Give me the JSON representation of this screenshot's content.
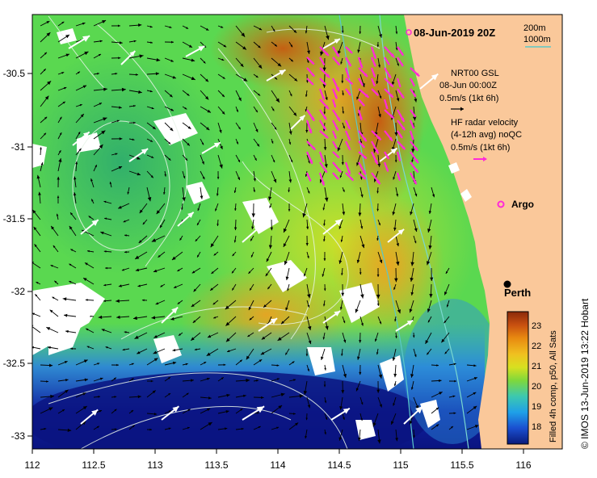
{
  "title": "08-Jun-2019 20Z",
  "credit": "© IMOS 13-Jun-2019 13:22 Hobart",
  "colorbar": {
    "label": "Filled 4h comp, p50, All Sats",
    "ticks": [
      "23",
      "22",
      "21",
      "20",
      "19",
      "18"
    ],
    "colors": [
      "#0a1a7a",
      "#1a4fd0",
      "#1fa0e8",
      "#3cc8b0",
      "#7ed83c",
      "#d8e020",
      "#f0c020",
      "#e88a10",
      "#c85010",
      "#8a2a0a"
    ]
  },
  "x_axis": {
    "ticks": [
      "112",
      "112.5",
      "113",
      "113.5",
      "114",
      "114.5",
      "115",
      "115.5",
      "116"
    ]
  },
  "y_axis": {
    "ticks": [
      "-30.5",
      "-31",
      "-31.5",
      "-32",
      "-32.5",
      "-33"
    ]
  },
  "legend": {
    "isobath_200": "200m",
    "isobath_1000": "1000m",
    "gsl_title": "NRT00 GSL",
    "gsl_date": "08-Jun 00:00Z",
    "gsl_scale": "0.5m/s (1kt 6h)",
    "hf_line1": "HF radar velocity",
    "hf_line2": "(4-12h avg) noQC",
    "hf_scale": "0.5m/s (1kt 6h)",
    "argo": "Argo",
    "perth": "Perth"
  },
  "palette": {
    "land": "#fac89a",
    "hf_arrow": "#ff2ad8",
    "isobath_200": "#7ad8d0",
    "isobath_1000": "#5ac8c8"
  }
}
